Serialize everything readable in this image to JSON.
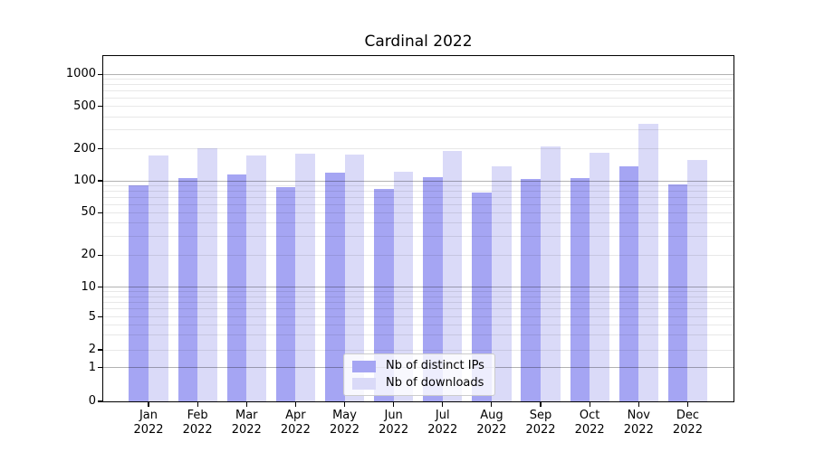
{
  "title": "Cardinal 2022",
  "chart_data": {
    "type": "bar",
    "title": "Cardinal 2022",
    "yscale": "symlog",
    "grid": true,
    "legend_position": "lower center",
    "categories": [
      "Jan",
      "Feb",
      "Mar",
      "Apr",
      "May",
      "Jun",
      "Jul",
      "Aug",
      "Sep",
      "Oct",
      "Nov",
      "Dec"
    ],
    "category_year": "2022",
    "series": [
      {
        "name": "Nb of distinct IPs",
        "color": "#a5a5f3",
        "values": [
          90,
          106,
          114,
          88,
          120,
          84,
          108,
          77,
          105,
          107,
          136,
          92
        ]
      },
      {
        "name": "Nb of downloads",
        "color": "#dadaf8",
        "values": [
          174,
          202,
          173,
          180,
          178,
          122,
          190,
          136,
          212,
          182,
          340,
          156
        ]
      }
    ],
    "ytick_labels": [
      "1000",
      "500",
      "200",
      "100",
      "50",
      "20",
      "10",
      "5",
      "2",
      "1",
      "0"
    ],
    "ytick_values": [
      1000,
      500,
      200,
      100,
      50,
      20,
      10,
      5,
      2,
      1,
      0
    ],
    "major_gridlines": [
      1,
      10,
      100,
      1000
    ],
    "minor_gridlines": [
      2,
      3,
      4,
      5,
      6,
      7,
      8,
      9,
      20,
      30,
      40,
      50,
      60,
      70,
      80,
      90,
      200,
      300,
      400,
      500,
      600,
      700,
      800,
      900
    ],
    "ylim": [
      0,
      1500
    ]
  },
  "legend": {
    "items": [
      {
        "label": "Nb of distinct IPs",
        "color": "#a5a5f3"
      },
      {
        "label": "Nb of downloads",
        "color": "#dadaf8"
      }
    ]
  }
}
